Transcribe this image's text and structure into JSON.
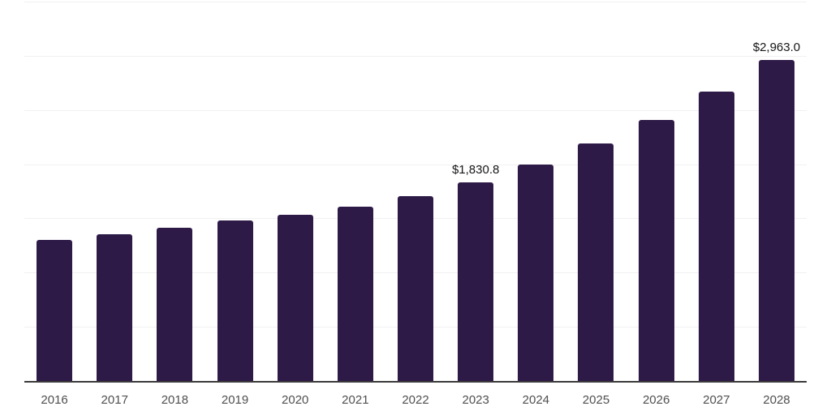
{
  "chart_data": {
    "type": "bar",
    "categories": [
      "2016",
      "2017",
      "2018",
      "2019",
      "2020",
      "2021",
      "2022",
      "2023",
      "2024",
      "2025",
      "2026",
      "2027",
      "2028"
    ],
    "values": [
      1298,
      1354,
      1416,
      1482,
      1536,
      1610,
      1708,
      1830.8,
      1996,
      2193,
      2411,
      2670,
      2963.0
    ],
    "data_labels": [
      {
        "index": 7,
        "text": "$1,830.8"
      },
      {
        "index": 12,
        "text": "$2,963.0"
      }
    ],
    "xlabel": "",
    "ylabel": "",
    "ylim": [
      0,
      3500
    ],
    "grid": {
      "show": true,
      "step": 500,
      "orientation": "horizontal"
    },
    "legend": {
      "show": false
    },
    "y_tick_labels_visible": false
  },
  "colors": {
    "background": "#ffffff",
    "bar": "#2e1a47",
    "gridline": "#f1f1f1",
    "axis_line": "#3a3a3a",
    "tick_label": "#4f4f4f",
    "data_label": "#161616"
  }
}
